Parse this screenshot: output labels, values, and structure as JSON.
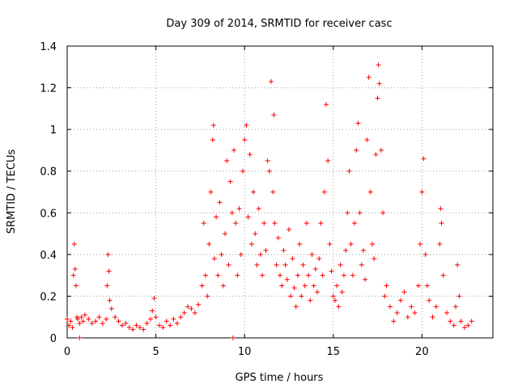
{
  "chart_data": {
    "type": "scatter",
    "title": "Day 309 of 2014, SRMTID for receiver casc",
    "xlabel": "GPS time / hours",
    "ylabel": "SRMTID / TECUs",
    "xlim": [
      0,
      24
    ],
    "ylim": [
      0,
      1.4
    ],
    "xticks": [
      0,
      5,
      10,
      15,
      20
    ],
    "xtick_labels": [
      "0",
      "5",
      "10",
      "15",
      "20"
    ],
    "yticks": [
      0,
      0.2,
      0.4,
      0.6,
      0.8,
      1,
      1.2,
      1.4
    ],
    "ytick_labels": [
      "0",
      "0.2",
      "0.4",
      "0.6",
      "0.8",
      "1",
      "1.2",
      "1.4"
    ],
    "grid": true,
    "marker": "+",
    "series": [
      {
        "name": "SRMTID",
        "color": "#ff0000",
        "x": [
          0.0,
          0.1,
          0.2,
          0.3,
          0.35,
          0.4,
          0.45,
          0.5,
          0.55,
          0.6,
          0.7,
          0.8,
          0.9,
          1.0,
          1.2,
          1.4,
          1.6,
          1.8,
          2.0,
          2.2,
          2.25,
          2.3,
          2.35,
          2.4,
          2.5,
          2.7,
          2.9,
          3.1,
          3.3,
          3.5,
          3.7,
          3.9,
          4.1,
          4.3,
          4.5,
          4.7,
          4.8,
          4.9,
          5.0,
          5.2,
          5.4,
          5.6,
          5.8,
          6.0,
          6.2,
          6.4,
          6.6,
          6.8,
          7.0,
          7.2,
          7.4,
          7.6,
          7.7,
          7.8,
          7.9,
          8.0,
          8.1,
          8.2,
          8.25,
          8.3,
          8.4,
          8.5,
          8.6,
          8.7,
          8.8,
          8.9,
          9.0,
          9.1,
          9.2,
          9.3,
          9.4,
          9.5,
          9.6,
          9.7,
          9.8,
          9.9,
          10.0,
          10.1,
          10.2,
          10.3,
          10.4,
          10.5,
          10.6,
          10.7,
          10.8,
          10.9,
          11.0,
          11.1,
          11.2,
          11.3,
          11.4,
          11.5,
          11.6,
          11.65,
          11.7,
          11.8,
          11.9,
          12.0,
          12.1,
          12.2,
          12.3,
          12.4,
          12.5,
          12.6,
          12.7,
          12.8,
          12.9,
          13.0,
          13.1,
          13.2,
          13.3,
          13.4,
          13.5,
          13.6,
          13.7,
          13.8,
          13.9,
          14.0,
          14.1,
          14.2,
          14.3,
          14.4,
          14.5,
          14.6,
          14.7,
          14.8,
          14.9,
          15.0,
          15.1,
          15.2,
          15.3,
          15.4,
          15.5,
          15.6,
          15.7,
          15.8,
          15.9,
          16.0,
          16.1,
          16.2,
          16.3,
          16.4,
          16.5,
          16.6,
          16.7,
          16.8,
          16.9,
          17.0,
          17.1,
          17.2,
          17.3,
          17.4,
          17.5,
          17.55,
          17.6,
          17.7,
          17.8,
          17.9,
          18.0,
          18.2,
          18.4,
          18.6,
          18.8,
          19.0,
          19.2,
          19.4,
          19.6,
          19.8,
          19.9,
          20.0,
          20.1,
          20.2,
          20.3,
          20.4,
          20.6,
          20.8,
          21.0,
          21.05,
          21.1,
          21.2,
          21.4,
          21.6,
          21.8,
          21.9,
          22.0,
          22.1,
          22.2,
          22.4,
          22.6,
          22.8,
          9.35,
          0.7
        ],
        "y": [
          0.09,
          0.06,
          0.08,
          0.05,
          0.3,
          0.45,
          0.33,
          0.25,
          0.1,
          0.09,
          0.07,
          0.1,
          0.08,
          0.11,
          0.09,
          0.07,
          0.08,
          0.1,
          0.07,
          0.09,
          0.25,
          0.4,
          0.32,
          0.18,
          0.14,
          0.1,
          0.08,
          0.06,
          0.07,
          0.05,
          0.04,
          0.06,
          0.05,
          0.04,
          0.07,
          0.09,
          0.13,
          0.19,
          0.1,
          0.06,
          0.05,
          0.08,
          0.06,
          0.09,
          0.07,
          0.1,
          0.12,
          0.15,
          0.14,
          0.12,
          0.16,
          0.25,
          0.55,
          0.3,
          0.2,
          0.45,
          0.7,
          0.95,
          1.02,
          0.38,
          0.58,
          0.3,
          0.65,
          0.4,
          0.25,
          0.5,
          0.85,
          0.35,
          0.75,
          0.6,
          0.9,
          0.55,
          0.3,
          0.62,
          0.4,
          0.8,
          0.95,
          1.02,
          0.58,
          0.88,
          0.45,
          0.7,
          0.5,
          0.35,
          0.62,
          0.4,
          0.3,
          0.55,
          0.42,
          0.85,
          0.8,
          1.23,
          0.7,
          1.07,
          0.55,
          0.35,
          0.48,
          0.3,
          0.25,
          0.42,
          0.35,
          0.28,
          0.52,
          0.2,
          0.38,
          0.24,
          0.15,
          0.3,
          0.45,
          0.2,
          0.35,
          0.25,
          0.55,
          0.3,
          0.18,
          0.4,
          0.25,
          0.33,
          0.22,
          0.38,
          0.55,
          0.3,
          0.7,
          1.12,
          0.85,
          0.45,
          0.32,
          0.2,
          0.18,
          0.25,
          0.15,
          0.35,
          0.22,
          0.3,
          0.42,
          0.6,
          0.8,
          0.45,
          0.3,
          0.55,
          0.9,
          1.03,
          0.6,
          0.35,
          0.42,
          0.28,
          0.95,
          1.25,
          0.7,
          0.45,
          0.38,
          0.88,
          1.15,
          1.31,
          1.22,
          0.9,
          0.6,
          0.2,
          0.25,
          0.15,
          0.08,
          0.12,
          0.18,
          0.22,
          0.1,
          0.15,
          0.12,
          0.25,
          0.45,
          0.7,
          0.86,
          0.4,
          0.25,
          0.18,
          0.1,
          0.15,
          0.45,
          0.62,
          0.55,
          0.3,
          0.12,
          0.08,
          0.06,
          0.15,
          0.35,
          0.2,
          0.08,
          0.05,
          0.06,
          0.08,
          0.0,
          0.0
        ]
      }
    ]
  }
}
